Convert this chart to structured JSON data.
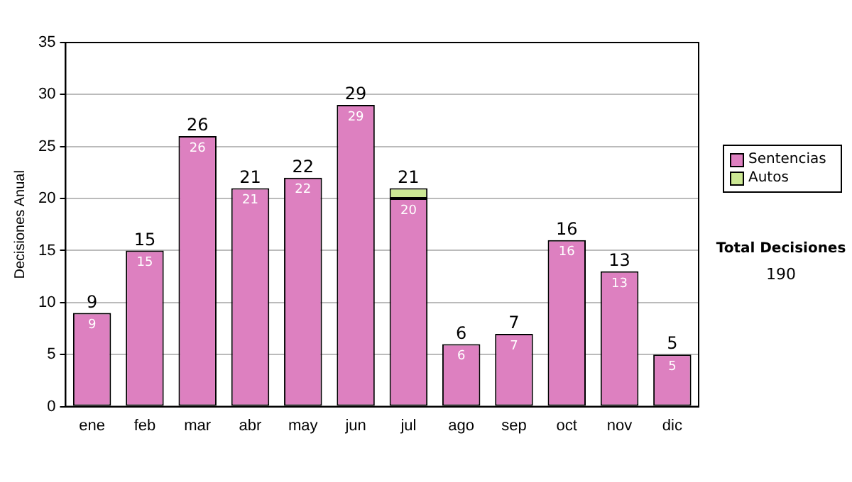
{
  "chart_data": {
    "type": "bar",
    "stacked": true,
    "ylabel": "Decisiones Anual",
    "categories": [
      "ene",
      "feb",
      "mar",
      "abr",
      "may",
      "jun",
      "jul",
      "ago",
      "sep",
      "oct",
      "nov",
      "dic"
    ],
    "series": [
      {
        "name": "Sentencias",
        "color": "#dd80c0",
        "values": [
          9,
          15,
          26,
          21,
          22,
          29,
          20,
          6,
          7,
          16,
          13,
          5
        ],
        "value_labels": [
          "9",
          "15",
          "26",
          "21",
          "22",
          "29",
          "20",
          "6",
          "7",
          "16",
          "13",
          "5"
        ]
      },
      {
        "name": "Autos",
        "color": "#cce894",
        "values": [
          null,
          null,
          null,
          null,
          null,
          null,
          1,
          null,
          null,
          null,
          null,
          null
        ]
      }
    ],
    "totals": [
      "9",
      "15",
      "26",
      "21",
      "22",
      "29",
      "21",
      "6",
      "7",
      "16",
      "13",
      "5"
    ],
    "ylim": [
      0,
      35
    ],
    "yticks": [
      0,
      5,
      10,
      15,
      20,
      25,
      30,
      35
    ],
    "grid": "y",
    "legend": "right",
    "annotations": [
      "Total Decisiones",
      "190"
    ]
  }
}
